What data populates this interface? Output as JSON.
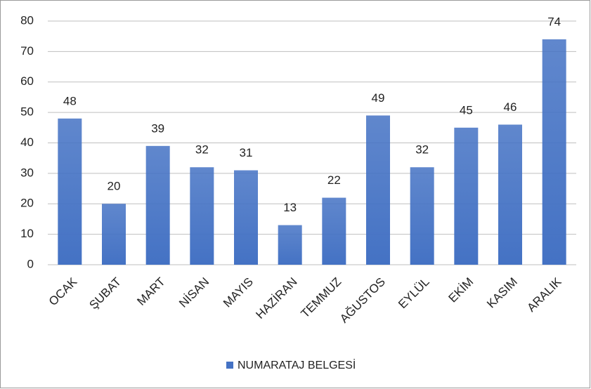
{
  "chart_data": {
    "type": "bar",
    "categories": [
      "OCAK",
      "ŞUBAT",
      "MART",
      "NİSAN",
      "MAYIS",
      "HAZİRAN",
      "TEMMUZ",
      "AĞUSTOS",
      "EYLÜL",
      "EKİM",
      "KASIM",
      "ARALIK"
    ],
    "series": [
      {
        "name": "NUMARATAJ BELGESİ",
        "color": "#4472c4",
        "values": [
          48,
          20,
          39,
          32,
          31,
          13,
          22,
          49,
          32,
          45,
          46,
          74
        ]
      }
    ],
    "ylim": [
      0,
      80
    ],
    "yticks": [
      0,
      10,
      20,
      30,
      40,
      50,
      60,
      70,
      80
    ],
    "grid": true,
    "legend": "bottom"
  }
}
